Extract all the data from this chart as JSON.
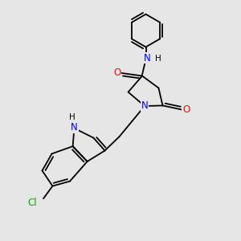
{
  "background_color": "#e6e6e6",
  "bond_color": "#000000",
  "atom_colors": {
    "N": "#0000ff",
    "O": "#ff0000",
    "Cl": "#00aa00",
    "H": "#000000",
    "C": "#000000"
  },
  "font_size": 8.5,
  "lw": 1.3
}
